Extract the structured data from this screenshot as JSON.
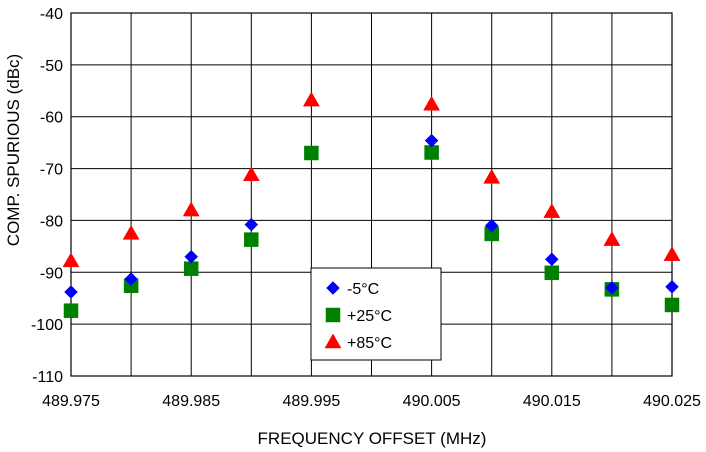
{
  "chart_data": {
    "type": "scatter",
    "title": "",
    "xlabel": "FREQUENCY OFFSET (MHz)",
    "ylabel": "COMP. SPURIOUS (dBc)",
    "xlim": [
      489.975,
      490.025
    ],
    "ylim": [
      -110,
      -40
    ],
    "x_ticks": [
      "489.975",
      "489.985",
      "489.995",
      "490.005",
      "490.015",
      "490.025"
    ],
    "x_tick_values": [
      489.975,
      489.985,
      489.995,
      490.005,
      490.015,
      490.025
    ],
    "y_ticks": [
      "-40",
      "-50",
      "-60",
      "-70",
      "-80",
      "-90",
      "-100",
      "-110"
    ],
    "y_tick_values": [
      -40,
      -50,
      -60,
      -70,
      -80,
      -90,
      -100,
      -110
    ],
    "x_gridlines": [
      489.975,
      489.98,
      489.985,
      489.99,
      489.995,
      490.0,
      490.005,
      490.01,
      490.015,
      490.02,
      490.025
    ],
    "grid": true,
    "legend_position": "bottom-center",
    "series": [
      {
        "name": "-5°C",
        "marker": "diamond",
        "color": "#0000FF",
        "x": [
          489.975,
          489.98,
          489.985,
          489.99,
          490.005,
          490.01,
          490.015,
          490.02,
          490.025
        ],
        "y": [
          -93.8,
          -91.3,
          -87.0,
          -80.8,
          -64.6,
          -81.0,
          -87.5,
          -93.0,
          -92.8
        ]
      },
      {
        "name": "+25°C",
        "marker": "square",
        "color": "#008000",
        "x": [
          489.975,
          489.98,
          489.985,
          489.99,
          489.995,
          490.005,
          490.01,
          490.015,
          490.02,
          490.025
        ],
        "y": [
          -97.4,
          -92.6,
          -89.3,
          -83.7,
          -67.0,
          -66.9,
          -82.6,
          -90.1,
          -93.3,
          -96.3
        ]
      },
      {
        "name": "+85°C",
        "marker": "triangle",
        "color": "#FF0000",
        "x": [
          489.975,
          489.98,
          489.985,
          489.99,
          489.995,
          490.005,
          490.01,
          490.015,
          490.02,
          490.025
        ],
        "y": [
          -87.8,
          -82.5,
          -78.0,
          -71.2,
          -56.8,
          -57.6,
          -71.7,
          -78.3,
          -83.7,
          -86.6
        ]
      }
    ]
  }
}
